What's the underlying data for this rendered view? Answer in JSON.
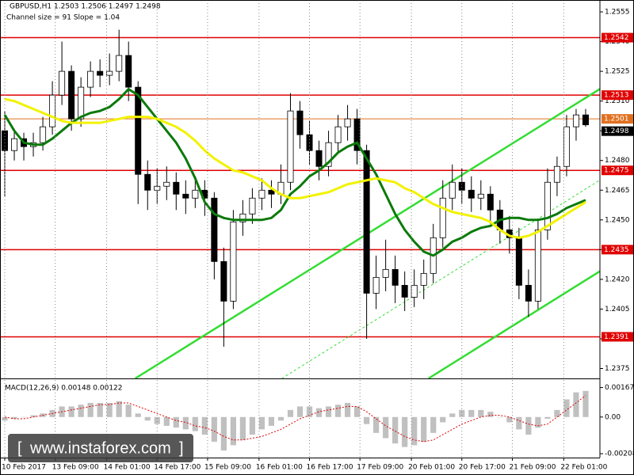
{
  "chart_data": [
    {
      "type": "candlestick",
      "title": "GBPUSD,H1  1.2503 1.2506 1.2497 1.2498",
      "subtitle": "Channel size = 91 Slope = 1.04",
      "xlim": [
        -0.5,
        62.5
      ],
      "xticks": [
        {
          "value": 0,
          "label": "10 Feb 2017"
        },
        {
          "value": 5.3,
          "label": "13 Feb 09:00"
        },
        {
          "value": 10.7,
          "label": "14 Feb 01:00"
        },
        {
          "value": 16,
          "label": "14 Feb 17:00"
        },
        {
          "value": 21.3,
          "label": "15 Feb 09:00"
        },
        {
          "value": 26.7,
          "label": "16 Feb 01:00"
        },
        {
          "value": 32,
          "label": "16 Feb 17:00"
        },
        {
          "value": 37.3,
          "label": "17 Feb 09:00"
        },
        {
          "value": 42.7,
          "label": "20 Feb 01:00"
        },
        {
          "value": 48,
          "label": "20 Feb 17:00"
        },
        {
          "value": 53.3,
          "label": "21 Feb 09:00"
        },
        {
          "value": 58.7,
          "label": "22 Feb 01:00"
        }
      ],
      "ylim": [
        1.237,
        1.2561
      ],
      "yticks": [
        1.2555,
        {
          "value": 1.254,
          "label": "1.2540"
        },
        1.2525,
        {
          "value": 1.251,
          "label": "1.2510"
        },
        1.2495,
        {
          "value": 1.248,
          "label": "1.2480"
        },
        1.2465,
        {
          "value": 1.245,
          "label": "1.2450"
        },
        1.2435,
        {
          "value": 1.242,
          "label": "1.2420"
        },
        1.2405,
        {
          "value": 1.239,
          "label": "1.2390"
        },
        1.2375
      ],
      "grid": "x",
      "candle_color": "#000000",
      "candles": [
        [
          1.2495,
          1.2505,
          1.2462,
          1.2485
        ],
        [
          1.2485,
          1.2496,
          1.248,
          1.2491
        ],
        [
          1.2491,
          1.2494,
          1.248,
          1.2487
        ],
        [
          1.2487,
          1.2494,
          1.2482,
          1.2489
        ],
        [
          1.2489,
          1.2502,
          1.2485,
          1.2497
        ],
        [
          1.2497,
          1.252,
          1.2493,
          1.2513
        ],
        [
          1.2513,
          1.254,
          1.2508,
          1.2525
        ],
        [
          1.2525,
          1.2528,
          1.2495,
          1.2501
        ],
        [
          1.2501,
          1.2522,
          1.2497,
          1.2517
        ],
        [
          1.2517,
          1.253,
          1.2512,
          1.2525
        ],
        [
          1.2525,
          1.2531,
          1.2517,
          1.2523
        ],
        [
          1.2523,
          1.2534,
          1.2518,
          1.2525
        ],
        [
          1.2525,
          1.2546,
          1.252,
          1.2533
        ],
        [
          1.2533,
          1.254,
          1.251,
          1.2517
        ],
        [
          1.2517,
          1.252,
          1.2458,
          1.2473
        ],
        [
          1.2473,
          1.248,
          1.2455,
          1.2465
        ],
        [
          1.2465,
          1.2476,
          1.2458,
          1.2467
        ],
        [
          1.2467,
          1.2477,
          1.246,
          1.2469
        ],
        [
          1.2469,
          1.2474,
          1.2455,
          1.2463
        ],
        [
          1.2463,
          1.247,
          1.2453,
          1.2461
        ],
        [
          1.2461,
          1.2472,
          1.2456,
          1.2465
        ],
        [
          1.2465,
          1.247,
          1.2452,
          1.2461
        ],
        [
          1.2461,
          1.2464,
          1.242,
          1.2429
        ],
        [
          1.2429,
          1.2436,
          1.2386,
          1.2409
        ],
        [
          1.2409,
          1.2455,
          1.2405,
          1.2449
        ],
        [
          1.2449,
          1.246,
          1.2442,
          1.2453
        ],
        [
          1.2453,
          1.2466,
          1.2448,
          1.2461
        ],
        [
          1.2461,
          1.2471,
          1.2455,
          1.2465
        ],
        [
          1.2465,
          1.247,
          1.2456,
          1.2463
        ],
        [
          1.2463,
          1.2478,
          1.2458,
          1.2469
        ],
        [
          1.2469,
          1.2514,
          1.2465,
          1.2505
        ],
        [
          1.2505,
          1.251,
          1.2486,
          1.2493
        ],
        [
          1.2493,
          1.25,
          1.2478,
          1.2485
        ],
        [
          1.2485,
          1.249,
          1.247,
          1.2477
        ],
        [
          1.2477,
          1.2495,
          1.2472,
          1.2489
        ],
        [
          1.2489,
          1.2503,
          1.2484,
          1.2497
        ],
        [
          1.2497,
          1.2508,
          1.249,
          1.2501
        ],
        [
          1.2501,
          1.2506,
          1.2478,
          1.2485
        ],
        [
          1.2485,
          1.2488,
          1.239,
          1.2413
        ],
        [
          1.2413,
          1.2432,
          1.2405,
          1.2421
        ],
        [
          1.2421,
          1.244,
          1.2414,
          1.2425
        ],
        [
          1.2425,
          1.2432,
          1.2408,
          1.2417
        ],
        [
          1.2417,
          1.2424,
          1.2404,
          1.2411
        ],
        [
          1.2411,
          1.2425,
          1.2406,
          1.2417
        ],
        [
          1.2417,
          1.243,
          1.241,
          1.2423
        ],
        [
          1.2423,
          1.2448,
          1.2418,
          1.2441
        ],
        [
          1.2441,
          1.247,
          1.2436,
          1.2461
        ],
        [
          1.2461,
          1.2478,
          1.2455,
          1.2469
        ],
        [
          1.2469,
          1.2476,
          1.2458,
          1.2465
        ],
        [
          1.2465,
          1.2472,
          1.2454,
          1.2461
        ],
        [
          1.2461,
          1.247,
          1.2455,
          1.2463
        ],
        [
          1.2463,
          1.2467,
          1.2448,
          1.2455
        ],
        [
          1.2455,
          1.246,
          1.2438,
          1.2445
        ],
        [
          1.2445,
          1.2452,
          1.2433,
          1.2441
        ],
        [
          1.2441,
          1.2446,
          1.241,
          1.2417
        ],
        [
          1.2417,
          1.2425,
          1.2401,
          1.2409
        ],
        [
          1.2409,
          1.245,
          1.2405,
          1.2445
        ],
        [
          1.2445,
          1.2476,
          1.244,
          1.2469
        ],
        [
          1.2469,
          1.2482,
          1.2462,
          1.2477
        ],
        [
          1.2477,
          1.2503,
          1.2472,
          1.2497
        ],
        [
          1.2497,
          1.2506,
          1.249,
          1.2503
        ],
        [
          1.2503,
          1.2506,
          1.2497,
          1.2498
        ]
      ],
      "overlays": [
        {
          "color": "#0a7a0a",
          "values": [
            1.2503,
            1.2495,
            1.2489,
            1.2488,
            1.2488,
            1.2491,
            1.2495,
            1.2499,
            1.2502,
            1.2504,
            1.2505,
            1.2507,
            1.2511,
            1.2516,
            1.2513,
            1.2507,
            1.2501,
            1.2495,
            1.2489,
            1.2481,
            1.2471,
            1.2459,
            1.2453,
            1.2451,
            1.245,
            1.245,
            1.245,
            1.245,
            1.2451,
            1.2455,
            1.2463,
            1.2467,
            1.2472,
            1.2475,
            1.2479,
            1.2484,
            1.2487,
            1.2489,
            1.2481,
            1.2473,
            1.2463,
            1.2453,
            1.2445,
            1.2439,
            1.2434,
            1.2432,
            1.2435,
            1.2439,
            1.2441,
            1.2444,
            1.2446,
            1.2447,
            1.245,
            1.2451,
            1.2451,
            1.245,
            1.245,
            1.2451,
            1.2453,
            1.2456,
            1.2458,
            1.246
          ]
        },
        {
          "color": "#f2f200",
          "values": [
            1.2511,
            1.251,
            1.2508,
            1.2506,
            1.2504,
            1.2502,
            1.25,
            1.2499,
            1.2499,
            1.2499,
            1.2499,
            1.25,
            1.2501,
            1.2502,
            1.2502,
            1.2502,
            1.2501,
            1.2499,
            1.2497,
            1.2494,
            1.249,
            1.2485,
            1.2481,
            1.2478,
            1.2475,
            1.2474,
            1.2472,
            1.247,
            1.2466,
            1.2463,
            1.2461,
            1.2461,
            1.2462,
            1.2463,
            1.2464,
            1.2466,
            1.2468,
            1.2469,
            1.247,
            1.2471,
            1.247,
            1.2469,
            1.2466,
            1.2464,
            1.2461,
            1.2458,
            1.2456,
            1.2454,
            1.2453,
            1.2452,
            1.2451,
            1.2449,
            1.2445,
            1.2442,
            1.2441,
            1.2442,
            1.2444,
            1.2447,
            1.245,
            1.2453,
            1.2456,
            1.2459
          ]
        }
      ],
      "trendlines": [
        {
          "color": "#33dd33",
          "x": [
            13.7,
            62.8
          ],
          "values": [
            1.237,
            1.2517
          ]
        },
        {
          "color": "#33dd33",
          "x": [
            44.5,
            62.8
          ],
          "values": [
            1.237,
            1.2425
          ]
        },
        {
          "color": "#33dd33",
          "dashed": true,
          "x": [
            29.1,
            62.8
          ],
          "values": [
            1.237,
            1.2471
          ]
        }
      ],
      "levels": [
        {
          "value": 1.2542,
          "color": "#e00000"
        },
        {
          "value": 1.2513,
          "color": "#e00000"
        },
        {
          "value": 1.2475,
          "color": "#e00000"
        },
        {
          "value": 1.2435,
          "color": "#e00000"
        },
        {
          "value": 1.2391,
          "color": "#e00000"
        }
      ],
      "ask_line": {
        "value": 1.2501,
        "color": "#e07020"
      },
      "last_price": {
        "value": 1.2498,
        "color": "#000000"
      }
    },
    {
      "type": "macd",
      "title": "MACD(12,26,9) 0.00148 0.00122",
      "ylim": [
        -0.0023,
        0.0021
      ],
      "yticks": [
        0.00167,
        {
          "value": 0,
          "label": "0.00"
        },
        -0.00208
      ],
      "histogram_color": "#c0c0c0",
      "signal_color": "#e00000",
      "histogram": [
        -0.0002,
        -0.0001,
        0,
        0.0001,
        0.0002,
        0.0004,
        0.0006,
        0.0006,
        0.0007,
        0.0008,
        0.0008,
        0.0008,
        0.0009,
        0.0007,
        0.0002,
        -0.0002,
        -0.0004,
        -0.0005,
        -0.0006,
        -0.0007,
        -0.0008,
        -0.001,
        -0.0014,
        -0.0019,
        -0.0016,
        -0.0013,
        -0.001,
        -0.0007,
        -0.0005,
        -0.0002,
        0.0004,
        0.0006,
        0.0006,
        0.0005,
        0.0006,
        0.0007,
        0.0008,
        0.0006,
        -0.0004,
        -0.0009,
        -0.0012,
        -0.0015,
        -0.0017,
        -0.0016,
        -0.0014,
        -0.0009,
        -0.0003,
        0.0002,
        0.0004,
        0.0004,
        0.0004,
        0.0003,
        0,
        -0.0003,
        -0.0007,
        -0.001,
        -0.0006,
        -0.0001,
        0.0004,
        0.001,
        0.0014,
        0.00148
      ],
      "signal": [
        0,
        -0.0001,
        -0.0001,
        0,
        0.0001,
        0.0002,
        0.0003,
        0.0004,
        0.0005,
        0.0006,
        0.0007,
        0.0007,
        0.0008,
        0.0008,
        0.0006,
        0.0004,
        0.0002,
        0,
        -0.0002,
        -0.0003,
        -0.0005,
        -0.0006,
        -0.0008,
        -0.0011,
        -0.0013,
        -0.0013,
        -0.0012,
        -0.0011,
        -0.0009,
        -0.0007,
        -0.0004,
        -0.0001,
        0.0001,
        0.0003,
        0.0004,
        0.0005,
        0.0006,
        0.0006,
        0.0003,
        -0.0001,
        -0.0005,
        -0.0008,
        -0.0011,
        -0.0013,
        -0.0014,
        -0.0013,
        -0.001,
        -0.0007,
        -0.0004,
        -0.0002,
        0,
        0.0001,
        0.0001,
        0,
        -0.0002,
        -0.0004,
        -0.0005,
        -0.0004,
        0,
        0.0004,
        0.0008,
        0.00122
      ]
    }
  ],
  "watermark": "www.instaforex.com"
}
